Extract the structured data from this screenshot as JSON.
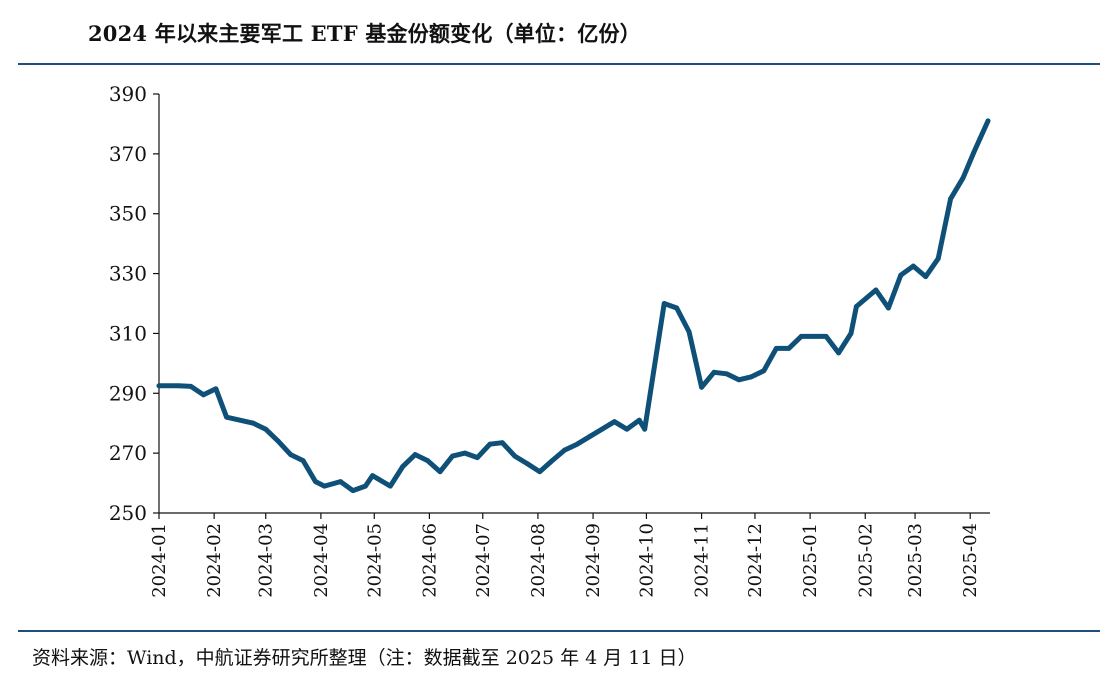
{
  "title": "2024 年以来主要军工 ETF 基金份额变化（单位：亿份）",
  "source": "资料来源：Wind，中航证券研究所整理（注：数据截至 2025 年 4 月 11 日）",
  "colors": {
    "line": "#0e5078",
    "rule": "#1e4e79",
    "axis": "#111111"
  },
  "chart_data": {
    "type": "line",
    "xlabel": "",
    "ylabel": "",
    "ylim": [
      250,
      390
    ],
    "yticks": [
      250,
      270,
      290,
      310,
      330,
      350,
      370,
      390
    ],
    "xticks": [
      "2024-01",
      "2024-02",
      "2024-03",
      "2024-04",
      "2024-05",
      "2024-06",
      "2024-07",
      "2024-08",
      "2024-09",
      "2024-10",
      "2024-11",
      "2024-12",
      "2025-01",
      "2025-02",
      "2025-03",
      "2025-04"
    ],
    "grid": false,
    "legend": "none",
    "series": [
      {
        "x": [
          "2024-01-01",
          "2024-01-12",
          "2024-01-19",
          "2024-01-26",
          "2024-02-02",
          "2024-02-08",
          "2024-02-23",
          "2024-03-01",
          "2024-03-08",
          "2024-03-15",
          "2024-03-22",
          "2024-03-29",
          "2024-04-03",
          "2024-04-12",
          "2024-04-19",
          "2024-04-26",
          "2024-04-30",
          "2024-05-10",
          "2024-05-17",
          "2024-05-24",
          "2024-05-31",
          "2024-06-07",
          "2024-06-14",
          "2024-06-21",
          "2024-06-28",
          "2024-07-05",
          "2024-07-12",
          "2024-07-19",
          "2024-07-26",
          "2024-08-02",
          "2024-08-09",
          "2024-08-16",
          "2024-08-23",
          "2024-08-30",
          "2024-09-06",
          "2024-09-13",
          "2024-09-20",
          "2024-09-27",
          "2024-09-30",
          "2024-10-11",
          "2024-10-18",
          "2024-10-25",
          "2024-11-01",
          "2024-11-08",
          "2024-11-15",
          "2024-11-22",
          "2024-11-29",
          "2024-12-06",
          "2024-12-13",
          "2024-12-20",
          "2024-12-27",
          "2025-01-03",
          "2025-01-10",
          "2025-01-17",
          "2025-01-24",
          "2025-01-27",
          "2025-02-07",
          "2025-02-14",
          "2025-02-21",
          "2025-02-28",
          "2025-03-07",
          "2025-03-14",
          "2025-03-21",
          "2025-03-28",
          "2025-04-03",
          "2025-04-11"
        ],
        "values": [
          292.5,
          292.5,
          292.3,
          289.5,
          291.5,
          282,
          280,
          278,
          274,
          269.5,
          267.5,
          260.5,
          259,
          260.5,
          257.5,
          259,
          262.5,
          259,
          265.5,
          269.5,
          267.5,
          263.8,
          269,
          270,
          268.5,
          273,
          273.5,
          269,
          266.5,
          263.8,
          267.5,
          271,
          273,
          275.5,
          278,
          280.5,
          278,
          281,
          278,
          320,
          318.5,
          310.5,
          292,
          297,
          296.5,
          294.5,
          295.5,
          297.5,
          305,
          305,
          309,
          309,
          309,
          303.5,
          310,
          319,
          324.5,
          318.5,
          329.5,
          332.5,
          329,
          335,
          355,
          362,
          370.5,
          381
        ]
      }
    ]
  }
}
